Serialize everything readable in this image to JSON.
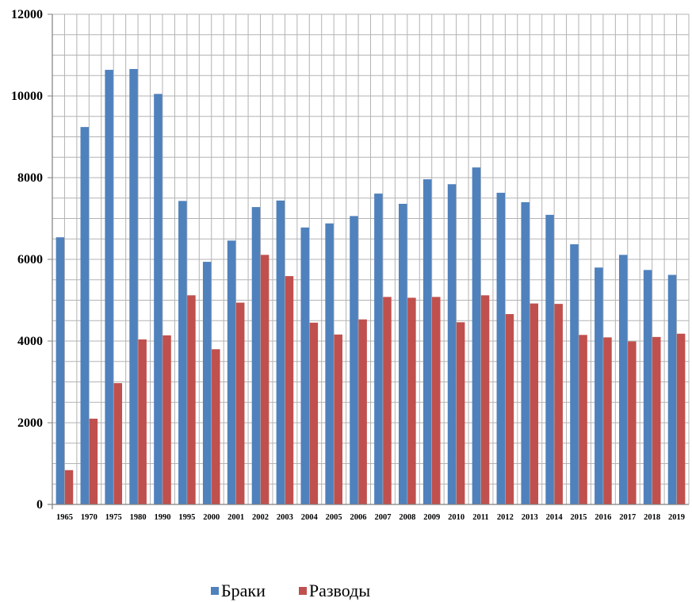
{
  "chart_data": {
    "type": "bar",
    "title": "",
    "xlabel": "",
    "ylabel": "",
    "ylim": [
      0,
      12000
    ],
    "yticks": [
      0,
      2000,
      4000,
      6000,
      8000,
      10000,
      12000
    ],
    "grid": true,
    "legend_position": "bottom",
    "categories": [
      "1965",
      "1970",
      "1975",
      "1980",
      "1990",
      "1995",
      "2000",
      "2001",
      "2002",
      "2003",
      "2004",
      "2005",
      "2006",
      "2007",
      "2008",
      "2009",
      "2010",
      "2011",
      "2012",
      "2013",
      "2014",
      "2015",
      "2016",
      "2017",
      "2018",
      "2019"
    ],
    "series": [
      {
        "name": "Браки",
        "color": "#4f81bd",
        "values": [
          6540,
          9240,
          10640,
          10660,
          10050,
          7430,
          5940,
          6460,
          7280,
          7440,
          6780,
          6880,
          7060,
          7610,
          7360,
          7960,
          7840,
          8250,
          7630,
          7400,
          7090,
          6370,
          5800,
          6110,
          5740,
          5620
        ]
      },
      {
        "name": "Разводы",
        "color": "#c0504d",
        "values": [
          840,
          2100,
          2970,
          4040,
          4140,
          5120,
          3800,
          4940,
          6110,
          5590,
          4450,
          4160,
          4530,
          5080,
          5060,
          5080,
          4460,
          5120,
          4660,
          4920,
          4910,
          4150,
          4090,
          3990,
          4100,
          4180
        ]
      }
    ]
  }
}
